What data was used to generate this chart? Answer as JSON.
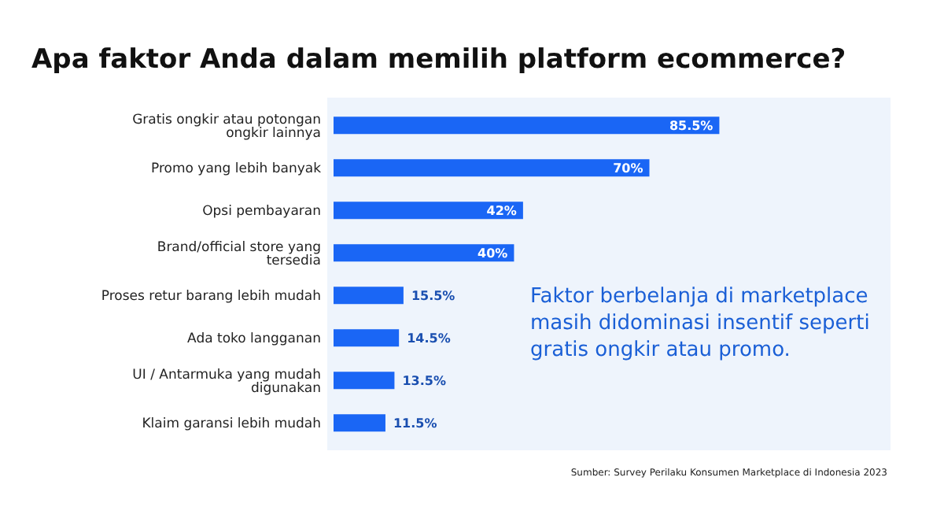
{
  "chart_data": {
    "type": "bar",
    "orientation": "horizontal",
    "title": "Apa faktor Anda dalam memilih platform ecommerce?",
    "categories": [
      "Gratis ongkir atau potongan ongkir lainnya",
      "Promo yang lebih banyak",
      "Opsi pembayaran",
      "Brand/official store yang tersedia",
      "Proses retur barang lebih mudah",
      "Ada toko langganan",
      "UI / Antarmuka yang mudah digunakan",
      "Klaim garansi lebih mudah"
    ],
    "values": [
      85.5,
      70,
      42,
      40,
      15.5,
      14.5,
      13.5,
      11.5
    ],
    "value_labels": [
      "85.5%",
      "70%",
      "42%",
      "40%",
      "15.5%",
      "14.5%",
      "13.5%",
      "11.5%"
    ],
    "color": "#1a66f5",
    "annotations": [
      "Faktor berbelanja di marketplace masih didominasi insentif seperti gratis ongkir atau promo.",
      "Sumber: Survey Perilaku Konsumen Marketplace di Indonesia 2023"
    ]
  }
}
